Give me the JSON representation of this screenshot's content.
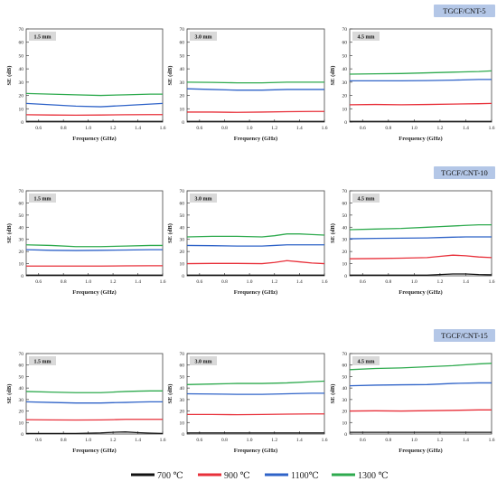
{
  "chart_data": [
    {
      "type": "line",
      "sample_label": "",
      "thickness_label": "1.5 mm",
      "xlabel": "Frequency (GHz)",
      "ylabel": "SE (dB)",
      "xlim": [
        0.5,
        1.6
      ],
      "ylim": [
        0,
        70
      ],
      "xticks": [
        "0.6",
        "0.8",
        "1.0",
        "1.2",
        "1.4",
        "1.6"
      ],
      "yticks": [
        "0",
        "10",
        "20",
        "30",
        "40",
        "50",
        "60",
        "70"
      ],
      "x": [
        0.5,
        0.7,
        0.9,
        1.1,
        1.3,
        1.5,
        1.6
      ],
      "series": [
        {
          "name": "700 ℃",
          "color": "#111111",
          "values": [
            0.5,
            0.5,
            0.5,
            0.5,
            0.5,
            0.5,
            0.5
          ]
        },
        {
          "name": "900 ℃",
          "color": "#e8303a",
          "values": [
            5.5,
            5.3,
            5.2,
            5.3,
            5.5,
            5.6,
            5.6
          ]
        },
        {
          "name": "1100℃",
          "color": "#2f63c8",
          "values": [
            14,
            13,
            12,
            11.5,
            12.5,
            13.5,
            14
          ]
        },
        {
          "name": "1300 ℃",
          "color": "#2eaa4e",
          "values": [
            21.5,
            21,
            20.5,
            20,
            20.5,
            21,
            21
          ]
        }
      ]
    },
    {
      "type": "line",
      "sample_label": "",
      "thickness_label": "3.0 mm",
      "xlabel": "Frequency (GHz)",
      "ylabel": "SE (dB)",
      "xlim": [
        0.5,
        1.6
      ],
      "ylim": [
        0,
        70
      ],
      "xticks": [
        "0.6",
        "0.8",
        "1.0",
        "1.2",
        "1.4",
        "1.6"
      ],
      "yticks": [
        "0",
        "10",
        "20",
        "30",
        "40",
        "50",
        "60",
        "70"
      ],
      "x": [
        0.5,
        0.7,
        0.9,
        1.1,
        1.3,
        1.5,
        1.6
      ],
      "series": [
        {
          "name": "700 ℃",
          "color": "#111111",
          "values": [
            0.5,
            0.5,
            0.5,
            0.5,
            0.5,
            0.5,
            0.5
          ]
        },
        {
          "name": "900 ℃",
          "color": "#e8303a",
          "values": [
            7.5,
            7.5,
            7.3,
            7.5,
            7.8,
            8,
            8
          ]
        },
        {
          "name": "1100℃",
          "color": "#2f63c8",
          "values": [
            25,
            24.5,
            24,
            24,
            24.5,
            24.5,
            24.5
          ]
        },
        {
          "name": "1300 ℃",
          "color": "#2eaa4e",
          "values": [
            30,
            29.8,
            29.5,
            29.5,
            30,
            30,
            30
          ]
        }
      ]
    },
    {
      "type": "line",
      "sample_label": "TGCF/CNT-5",
      "thickness_label": "4.5 mm",
      "xlabel": "Frequency (GHz)",
      "ylabel": "SE (dB)",
      "xlim": [
        0.5,
        1.6
      ],
      "ylim": [
        0,
        70
      ],
      "xticks": [
        "0.6",
        "0.8",
        "1.0",
        "1.2",
        "1.4",
        "1.6"
      ],
      "yticks": [
        "0",
        "10",
        "20",
        "30",
        "40",
        "50",
        "60",
        "70"
      ],
      "x": [
        0.5,
        0.7,
        0.9,
        1.1,
        1.3,
        1.5,
        1.6
      ],
      "series": [
        {
          "name": "700 ℃",
          "color": "#111111",
          "values": [
            0.5,
            0.5,
            0.5,
            0.5,
            0.5,
            0.5,
            0.5
          ]
        },
        {
          "name": "900 ℃",
          "color": "#e8303a",
          "values": [
            13,
            13.2,
            13,
            13.2,
            13.5,
            13.8,
            14
          ]
        },
        {
          "name": "1100℃",
          "color": "#2f63c8",
          "values": [
            31,
            31,
            31,
            31.2,
            31.5,
            32,
            32
          ]
        },
        {
          "name": "1300 ℃",
          "color": "#2eaa4e",
          "values": [
            36,
            36.3,
            36.5,
            37,
            37.5,
            38,
            38.5
          ]
        }
      ]
    },
    {
      "type": "line",
      "sample_label": "",
      "thickness_label": "1.5 mm",
      "xlabel": "Frequency (GHz)",
      "ylabel": "SE (dB)",
      "xlim": [
        0.5,
        1.6
      ],
      "ylim": [
        0,
        70
      ],
      "xticks": [
        "0.6",
        "0.8",
        "1.0",
        "1.2",
        "1.4",
        "1.6"
      ],
      "yticks": [
        "0",
        "10",
        "20",
        "30",
        "40",
        "50",
        "60",
        "70"
      ],
      "x": [
        0.5,
        0.7,
        0.9,
        1.1,
        1.3,
        1.5,
        1.6
      ],
      "series": [
        {
          "name": "700 ℃",
          "color": "#111111",
          "values": [
            0.5,
            0.5,
            0.5,
            0.5,
            0.5,
            0.5,
            0.5
          ]
        },
        {
          "name": "900 ℃",
          "color": "#e8303a",
          "values": [
            8,
            8,
            8,
            8,
            8.2,
            8.3,
            8.3
          ]
        },
        {
          "name": "1100℃",
          "color": "#2f63c8",
          "values": [
            21.5,
            21,
            20.8,
            21,
            21.2,
            21.5,
            21.5
          ]
        },
        {
          "name": "1300 ℃",
          "color": "#2eaa4e",
          "values": [
            25.5,
            25,
            24,
            24,
            24.5,
            25,
            25
          ]
        }
      ]
    },
    {
      "type": "line",
      "sample_label": "",
      "thickness_label": "3.0 mm",
      "xlabel": "Frequency (GHz)",
      "ylabel": "SE (dB)",
      "xlim": [
        0.5,
        1.6
      ],
      "ylim": [
        0,
        70
      ],
      "xticks": [
        "0.6",
        "0.8",
        "1.0",
        "1.2",
        "1.4",
        "1.6"
      ],
      "yticks": [
        "0",
        "10",
        "20",
        "30",
        "40",
        "50",
        "60",
        "70"
      ],
      "x": [
        0.5,
        0.7,
        0.9,
        1.1,
        1.2,
        1.3,
        1.4,
        1.5,
        1.6
      ],
      "series": [
        {
          "name": "700 ℃",
          "color": "#111111",
          "values": [
            0.5,
            0.5,
            0.5,
            0.5,
            0.5,
            0.5,
            0.5,
            0.5,
            0.5
          ]
        },
        {
          "name": "900 ℃",
          "color": "#e8303a",
          "values": [
            10,
            10.2,
            10.2,
            10,
            11,
            12.5,
            11.5,
            10.5,
            10
          ]
        },
        {
          "name": "1100℃",
          "color": "#2f63c8",
          "values": [
            25,
            24.8,
            24.5,
            24.5,
            25,
            25.5,
            25.5,
            25.5,
            25.5
          ]
        },
        {
          "name": "1300 ℃",
          "color": "#2eaa4e",
          "values": [
            32,
            32.5,
            32.5,
            32,
            33,
            34.5,
            34.5,
            34,
            33.5
          ]
        }
      ]
    },
    {
      "type": "line",
      "sample_label": "TGCF/CNT-10",
      "thickness_label": "4.5 mm",
      "xlabel": "Frequency (GHz)",
      "ylabel": "SE (dB)",
      "xlim": [
        0.5,
        1.6
      ],
      "ylim": [
        0,
        70
      ],
      "xticks": [
        "0.6",
        "0.8",
        "1.0",
        "1.2",
        "1.4",
        "1.6"
      ],
      "yticks": [
        "0",
        "10",
        "20",
        "30",
        "40",
        "50",
        "60",
        "70"
      ],
      "x": [
        0.5,
        0.7,
        0.9,
        1.1,
        1.2,
        1.3,
        1.4,
        1.5,
        1.6
      ],
      "series": [
        {
          "name": "700 ℃",
          "color": "#111111",
          "values": [
            0.5,
            0.5,
            0.5,
            0.5,
            1,
            1.5,
            1.5,
            1,
            0.8
          ]
        },
        {
          "name": "900 ℃",
          "color": "#e8303a",
          "values": [
            14,
            14.2,
            14.5,
            15,
            16,
            17,
            16.5,
            15.5,
            15
          ]
        },
        {
          "name": "1100℃",
          "color": "#2f63c8",
          "values": [
            30.5,
            30.8,
            31,
            31.2,
            31.5,
            31.8,
            32,
            32,
            32
          ]
        },
        {
          "name": "1300 ℃",
          "color": "#2eaa4e",
          "values": [
            38,
            38.5,
            39,
            40,
            40.5,
            41,
            41.5,
            42,
            42
          ]
        }
      ]
    },
    {
      "type": "line",
      "sample_label": "",
      "thickness_label": "1.5 mm",
      "xlabel": "Frequency (GHz)",
      "ylabel": "SE (dB)",
      "xlim": [
        0.5,
        1.6
      ],
      "ylim": [
        0,
        70
      ],
      "xticks": [
        "0.6",
        "0.8",
        "1.0",
        "1.2",
        "1.4",
        "1.6"
      ],
      "yticks": [
        "0",
        "10",
        "20",
        "30",
        "40",
        "50",
        "60",
        "70"
      ],
      "x": [
        0.5,
        0.7,
        0.9,
        1.1,
        1.2,
        1.3,
        1.4,
        1.5,
        1.6
      ],
      "series": [
        {
          "name": "700 ℃",
          "color": "#111111",
          "values": [
            0.5,
            0.5,
            0.5,
            1,
            1.5,
            1.8,
            1.2,
            0.8,
            0.5
          ]
        },
        {
          "name": "900 ℃",
          "color": "#e8303a",
          "values": [
            12.5,
            12.3,
            12.2,
            12.3,
            12.5,
            12.8,
            12.8,
            12.8,
            12.8
          ]
        },
        {
          "name": "1100℃",
          "color": "#2f63c8",
          "values": [
            28,
            27.5,
            27,
            27,
            27.3,
            27.5,
            27.8,
            28,
            28
          ]
        },
        {
          "name": "1300 ℃",
          "color": "#2eaa4e",
          "values": [
            37,
            36.5,
            36,
            36,
            36.5,
            37,
            37.3,
            37.5,
            37.5
          ]
        }
      ]
    },
    {
      "type": "line",
      "sample_label": "",
      "thickness_label": "3.0 mm",
      "xlabel": "Frequency (GHz)",
      "ylabel": "SE (dB)",
      "xlim": [
        0.5,
        1.6
      ],
      "ylim": [
        0,
        70
      ],
      "xticks": [
        "0.6",
        "0.8",
        "1.0",
        "1.2",
        "1.4",
        "1.6"
      ],
      "yticks": [
        "0",
        "10",
        "20",
        "30",
        "40",
        "50",
        "60",
        "70"
      ],
      "x": [
        0.5,
        0.7,
        0.9,
        1.1,
        1.3,
        1.5,
        1.6
      ],
      "series": [
        {
          "name": "700 ℃",
          "color": "#111111",
          "values": [
            1,
            1,
            1,
            1,
            1,
            1,
            1
          ]
        },
        {
          "name": "900 ℃",
          "color": "#e8303a",
          "values": [
            17,
            17,
            16.8,
            17,
            17.3,
            17.5,
            17.5
          ]
        },
        {
          "name": "1100℃",
          "color": "#2f63c8",
          "values": [
            35,
            34.8,
            34.5,
            34.5,
            35,
            35.5,
            35.5
          ]
        },
        {
          "name": "1300 ℃",
          "color": "#2eaa4e",
          "values": [
            43,
            43.5,
            44,
            44,
            44.5,
            45.5,
            46
          ]
        }
      ]
    },
    {
      "type": "line",
      "sample_label": "TGCF/CNT-15",
      "thickness_label": "4.5 mm",
      "xlabel": "Frequency (GHz)",
      "ylabel": "SE (dB)",
      "xlim": [
        0.5,
        1.6
      ],
      "ylim": [
        0,
        70
      ],
      "xticks": [
        "0.6",
        "0.8",
        "1.0",
        "1.2",
        "1.4",
        "1.6"
      ],
      "yticks": [
        "0",
        "10",
        "20",
        "30",
        "40",
        "50",
        "60",
        "70"
      ],
      "x": [
        0.5,
        0.7,
        0.9,
        1.1,
        1.3,
        1.5,
        1.6
      ],
      "series": [
        {
          "name": "700 ℃",
          "color": "#111111",
          "values": [
            1.5,
            1.5,
            1.5,
            1.5,
            1.5,
            1.5,
            1.5
          ]
        },
        {
          "name": "900 ℃",
          "color": "#e8303a",
          "values": [
            20,
            20.2,
            20,
            20.3,
            20.6,
            21,
            21
          ]
        },
        {
          "name": "1100℃",
          "color": "#2f63c8",
          "values": [
            42,
            42.5,
            42.8,
            43,
            44,
            44.5,
            44.5
          ]
        },
        {
          "name": "1300 ℃",
          "color": "#2eaa4e",
          "values": [
            56,
            57,
            57.5,
            58.5,
            59.5,
            61,
            61.5
          ]
        }
      ]
    }
  ],
  "legend": {
    "placement": "bottom",
    "items": [
      {
        "label": "700 ℃",
        "color": "#111111"
      },
      {
        "label": "900 ℃",
        "color": "#e8303a"
      },
      {
        "label": "1100℃",
        "color": "#2f63c8"
      },
      {
        "label": "1300 ℃",
        "color": "#2eaa4e"
      }
    ]
  },
  "colors": {
    "sample_badge_bg": "#b4c7e7",
    "thickness_badge_bg": "#d9d9d9",
    "axis": "#444444"
  }
}
